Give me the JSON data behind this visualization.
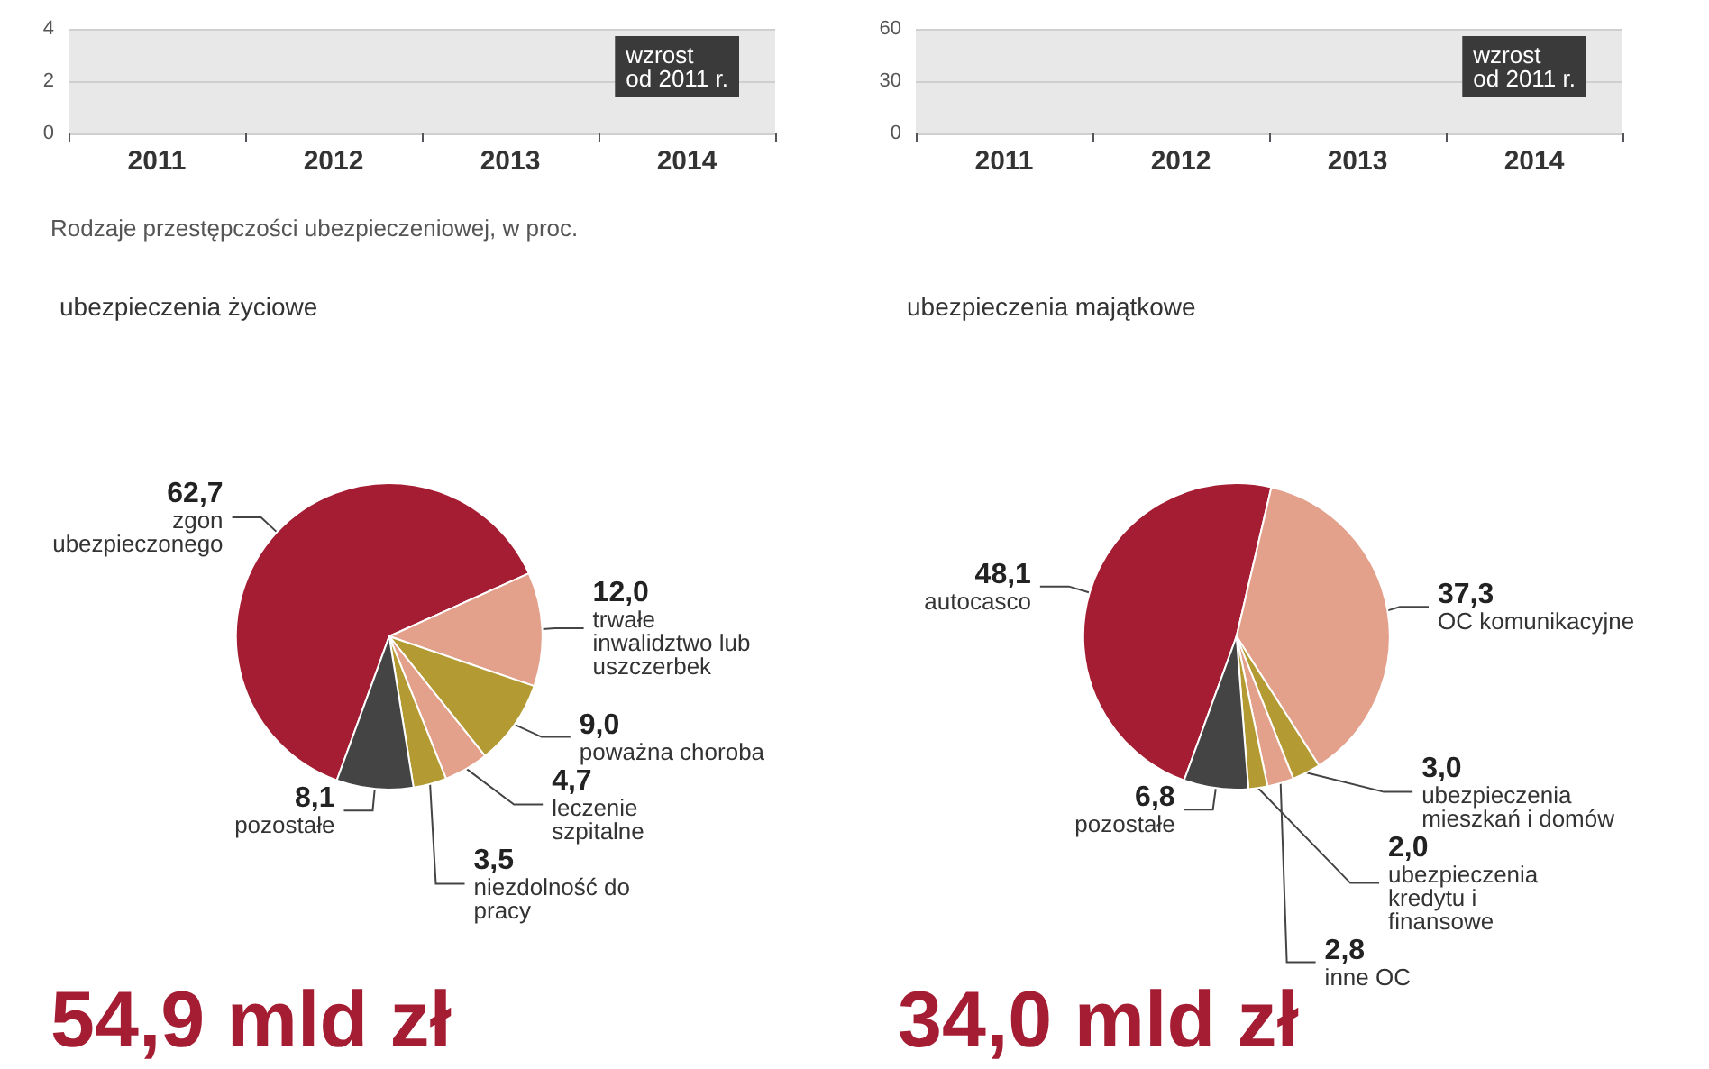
{
  "chart_data": [
    {
      "type": "bar",
      "categories": [
        "2011",
        "2012",
        "2013",
        "2014"
      ],
      "values": [
        null,
        null,
        null,
        null
      ],
      "ylim": [
        0,
        4
      ],
      "yticks": [
        0,
        2,
        4
      ],
      "grid": "y",
      "legend": false,
      "annotations": [
        "wzrost od 2011 r."
      ]
    },
    {
      "type": "bar",
      "categories": [
        "2011",
        "2012",
        "2013",
        "2014"
      ],
      "values": [
        null,
        null,
        null,
        null
      ],
      "ylim": [
        0,
        60
      ],
      "yticks": [
        0,
        30,
        60
      ],
      "grid": "y",
      "legend": false,
      "annotations": [
        "wzrost od 2011 r."
      ]
    },
    {
      "type": "pie",
      "title": "ubezpieczenia życiowe",
      "categories": [
        "zgon ubezpieczonego",
        "trwałe inwalidztwo lub uszczerbek",
        "poważna choroba",
        "leczenie szpitalne",
        "niezdolność do pracy",
        "pozostałe"
      ],
      "values": [
        62.7,
        12.0,
        9.0,
        4.7,
        3.5,
        8.1
      ],
      "value_labels": [
        "62,7",
        "12,0",
        "9,0",
        "4,7",
        "3,5",
        "8,1"
      ],
      "colors": [
        "#a51d33",
        "#e3a08b",
        "#b39a33",
        "#e3a08b",
        "#b39a33",
        "#444444"
      ],
      "legend": false,
      "annotations": [
        "Rodzaje przestępczości ubezpieczeniowej, w proc.",
        "54,9 mld zł"
      ]
    },
    {
      "type": "pie",
      "title": "ubezpieczenia majątkowe",
      "categories": [
        "autocasco",
        "OC komunikacyjne",
        "ubezpieczenia mieszkań i domów",
        "inne OC",
        "ubezpieczenia kredytu i finansowe",
        "pozostałe"
      ],
      "values": [
        48.1,
        37.3,
        3.0,
        2.8,
        2.0,
        6.8
      ],
      "value_labels": [
        "48,1",
        "37,3",
        "3,0",
        "2,8",
        "2,0",
        "6,8"
      ],
      "colors": [
        "#a51d33",
        "#e3a08b",
        "#b39a33",
        "#e3a08b",
        "#b39a33",
        "#444444"
      ],
      "legend": false,
      "annotations": [
        "34,0 mld zł"
      ]
    }
  ]
}
